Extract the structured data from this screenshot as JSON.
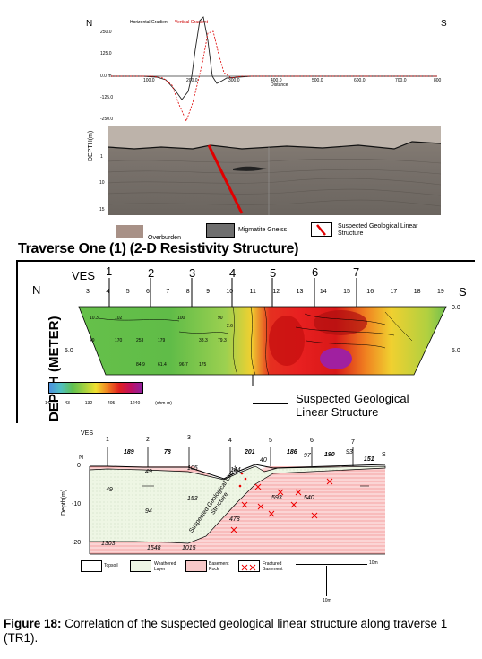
{
  "panel_a": {
    "north": "N",
    "south": "S",
    "legend_horizontal": "Horizontal Gradient",
    "legend_vertical": "Vertical Gradient",
    "y_ticks": [
      "250.0",
      "125.0",
      "0.0 m",
      "-125.0",
      "-250.0"
    ],
    "x_ticks": [
      "0.0",
      "100.0",
      "200.0",
      "300.0",
      "400.0",
      "500.0",
      "600.0",
      "700.0",
      "800"
    ],
    "x_unit": "Distance",
    "depth_label": "DEPTH(m)",
    "depth_ticks": [
      "1",
      "10",
      "15"
    ],
    "legend": [
      {
        "label": "Overburden",
        "color": "#a89187"
      },
      {
        "label": "Migmatite Gneiss",
        "color": "#6e6e6e"
      },
      {
        "label": "Suspected Geological Linear Structure",
        "color": "#e00000"
      }
    ]
  },
  "panel_b": {
    "title": "Traverse One (1) (2-D Resistivity Structure)",
    "ves_label": "VES",
    "ves_numbers": [
      "1",
      "2",
      "3",
      "4",
      "5",
      "6",
      "7"
    ],
    "north": "N",
    "south": "S",
    "electrodes": [
      "3",
      "4",
      "5",
      "6",
      "7",
      "8",
      "9",
      "10",
      "11",
      "12",
      "13",
      "14",
      "15",
      "16",
      "17",
      "18",
      "19"
    ],
    "depth_label": "DEPTH (METER)",
    "right_ticks": [
      "0.0",
      "5.0"
    ],
    "left_ticks": [
      "5.0"
    ],
    "colorbar_ticks": [
      "14",
      "43",
      "132",
      "405",
      "1240",
      "(ohm-m)"
    ],
    "annotation": "Suspected Geological Linear Structure",
    "cell_values": [
      "10.3",
      "102",
      "100",
      "90",
      "2.6",
      "5.0",
      "49",
      "170",
      "253",
      "179",
      "38.3",
      "79.3",
      "5.0",
      "84.9",
      "61.4",
      "96.7",
      "175"
    ]
  },
  "panel_c": {
    "ves_label": "VES",
    "ves_numbers": [
      "1",
      "2",
      "3",
      "4",
      "5",
      "6",
      "7"
    ],
    "top_resistivities": [
      "189",
      "78",
      "201",
      "186",
      "190",
      "151"
    ],
    "north": "N",
    "south": "S",
    "ylabel": "Depth(m)",
    "y_ticks": [
      "0",
      "-10",
      "-20"
    ],
    "layer_values": [
      "49",
      "49",
      "105",
      "144",
      "40",
      "97",
      "93",
      "94",
      "153",
      "593",
      "540",
      "478",
      "1303",
      "1548",
      "1015"
    ],
    "inclined_label": "Suspected Geological Linear Structure",
    "legend": [
      {
        "label": "Topsoil",
        "color": "#ffffff"
      },
      {
        "label": "Weathered Layer",
        "color": "#eef6e6"
      },
      {
        "label": "Basement Rock",
        "color": "#f7c8c8"
      },
      {
        "label": "Fractured Basement",
        "color": "#ffffff"
      }
    ],
    "scale_h": "10m",
    "scale_v": "10m"
  },
  "caption": {
    "label": "Figure 18:",
    "text": "Correlation of the suspected geological linear structure along traverse 1 (TR1)."
  }
}
